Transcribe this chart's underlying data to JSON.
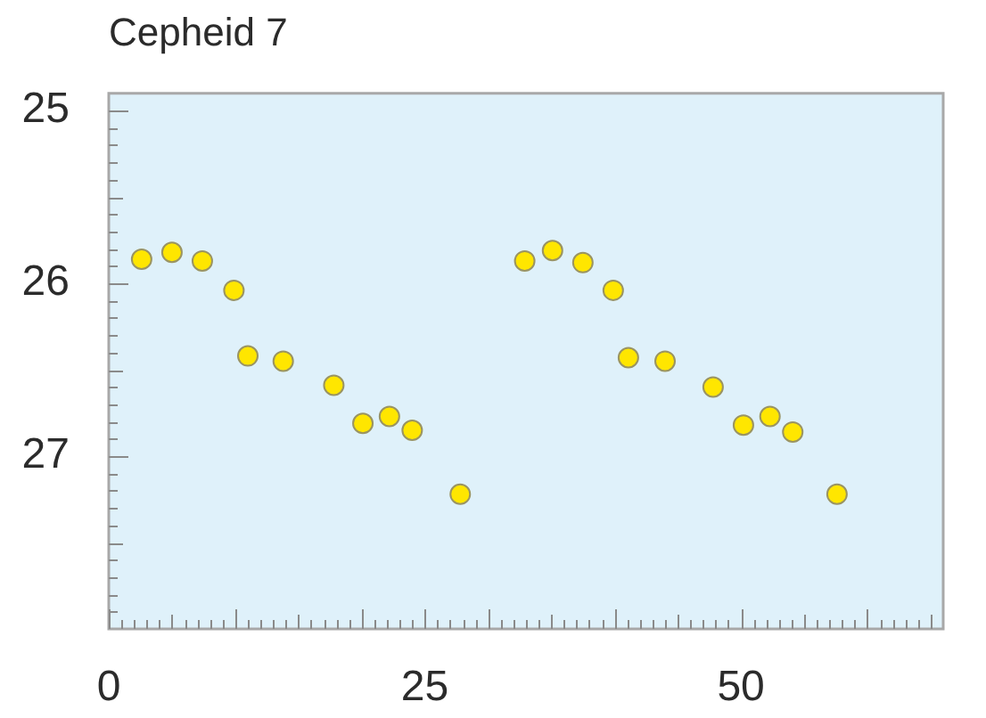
{
  "chart_data": {
    "type": "scatter",
    "title": "Cepheid 7",
    "x": [
      2.6,
      5.0,
      7.4,
      9.9,
      11.0,
      13.8,
      17.8,
      20.1,
      22.2,
      24.0,
      27.8,
      32.9,
      35.1,
      37.5,
      39.9,
      41.1,
      44.0,
      47.8,
      50.2,
      52.3,
      54.1,
      57.6
    ],
    "series": [
      {
        "color": "#ffe600",
        "values": [
          25.86,
          25.82,
          25.87,
          26.04,
          26.42,
          26.45,
          26.59,
          26.81,
          26.77,
          26.85,
          27.22,
          25.87,
          25.81,
          25.88,
          26.04,
          26.43,
          26.45,
          26.6,
          26.82,
          26.77,
          26.86,
          27.22
        ]
      }
    ],
    "xlim": [
      0,
      66
    ],
    "xticks": [
      0,
      {
        "value": 1,
        "label": null
      },
      {
        "value": 2,
        "label": null
      },
      {
        "value": 3,
        "label": null
      },
      {
        "value": 4,
        "label": null
      },
      {
        "value": 5,
        "label": null
      },
      {
        "value": 6,
        "label": null
      },
      {
        "value": 7,
        "label": null
      },
      {
        "value": 8,
        "label": null
      },
      {
        "value": 9,
        "label": null
      },
      {
        "value": 10,
        "label": null
      },
      {
        "value": 11,
        "label": null
      },
      {
        "value": 12,
        "label": null
      },
      {
        "value": 13,
        "label": null
      },
      {
        "value": 14,
        "label": null
      },
      {
        "value": 15,
        "label": null
      },
      {
        "value": 16,
        "label": null
      },
      {
        "value": 17,
        "label": null
      },
      {
        "value": 18,
        "label": null
      },
      {
        "value": 19,
        "label": null
      },
      {
        "value": 20,
        "label": null
      },
      {
        "value": 21,
        "label": null
      },
      {
        "value": 22,
        "label": null
      },
      {
        "value": 23,
        "label": null
      },
      {
        "value": 24,
        "label": null
      },
      25,
      {
        "value": 26,
        "label": null
      },
      {
        "value": 27,
        "label": null
      },
      {
        "value": 28,
        "label": null
      },
      {
        "value": 29,
        "label": null
      },
      {
        "value": 30,
        "label": null
      },
      {
        "value": 31,
        "label": null
      },
      {
        "value": 32,
        "label": null
      },
      {
        "value": 33,
        "label": null
      },
      {
        "value": 34,
        "label": null
      },
      {
        "value": 35,
        "label": null
      },
      {
        "value": 36,
        "label": null
      },
      {
        "value": 37,
        "label": null
      },
      {
        "value": 38,
        "label": null
      },
      {
        "value": 39,
        "label": null
      },
      {
        "value": 40,
        "label": null
      },
      {
        "value": 41,
        "label": null
      },
      {
        "value": 42,
        "label": null
      },
      {
        "value": 43,
        "label": null
      },
      {
        "value": 44,
        "label": null
      },
      {
        "value": 45,
        "label": null
      },
      {
        "value": 46,
        "label": null
      },
      {
        "value": 47,
        "label": null
      },
      {
        "value": 48,
        "label": null
      },
      {
        "value": 49,
        "label": null
      },
      50,
      {
        "value": 51,
        "label": null
      },
      {
        "value": 52,
        "label": null
      },
      {
        "value": 53,
        "label": null
      },
      {
        "value": 54,
        "label": null
      },
      {
        "value": 55,
        "label": null
      },
      {
        "value": 56,
        "label": null
      },
      {
        "value": 57,
        "label": null
      },
      {
        "value": 58,
        "label": null
      },
      {
        "value": 59,
        "label": null
      },
      {
        "value": 60,
        "label": null
      },
      {
        "value": 61,
        "label": null
      },
      {
        "value": 62,
        "label": null
      },
      {
        "value": 63,
        "label": null
      },
      {
        "value": 64,
        "label": null
      },
      {
        "value": 65,
        "label": null
      }
    ],
    "ylim": [
      28,
      24.9
    ],
    "yticks": [
      25,
      {
        "value": 25.1,
        "label": null
      },
      {
        "value": 25.2,
        "label": null
      },
      {
        "value": 25.3,
        "label": null
      },
      {
        "value": 25.4,
        "label": null
      },
      {
        "value": 25.5,
        "label": null
      },
      {
        "value": 25.6,
        "label": null
      },
      {
        "value": 25.7,
        "label": null
      },
      {
        "value": 25.8,
        "label": null
      },
      {
        "value": 25.9,
        "label": null
      },
      26,
      {
        "value": 26.1,
        "label": null
      },
      {
        "value": 26.2,
        "label": null
      },
      {
        "value": 26.3,
        "label": null
      },
      {
        "value": 26.4,
        "label": null
      },
      {
        "value": 26.5,
        "label": null
      },
      {
        "value": 26.6,
        "label": null
      },
      {
        "value": 26.7,
        "label": null
      },
      {
        "value": 26.8,
        "label": null
      },
      {
        "value": 26.9,
        "label": null
      },
      27,
      {
        "value": 27.1,
        "label": null
      },
      {
        "value": 27.2,
        "label": null
      },
      {
        "value": 27.3,
        "label": null
      },
      {
        "value": 27.4,
        "label": null
      },
      {
        "value": 27.5,
        "label": null
      },
      {
        "value": 27.6,
        "label": null
      },
      {
        "value": 27.7,
        "label": null
      },
      {
        "value": 27.8,
        "label": null
      },
      {
        "value": 27.9,
        "label": null
      }
    ],
    "marker": "circle"
  }
}
